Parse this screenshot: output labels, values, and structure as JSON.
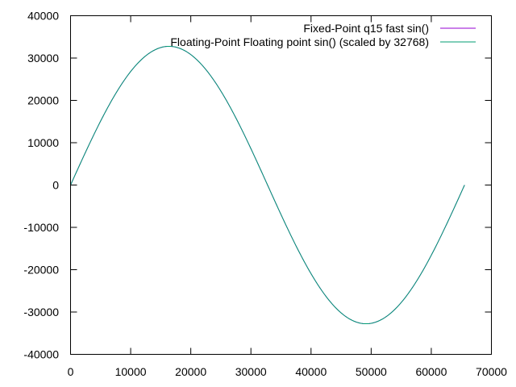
{
  "chart_data": {
    "type": "line",
    "title": "",
    "xlabel": "",
    "ylabel": "",
    "xlim": [
      0,
      70000
    ],
    "ylim": [
      -40000,
      40000
    ],
    "x_ticks": [
      0,
      10000,
      20000,
      30000,
      40000,
      50000,
      60000,
      70000
    ],
    "y_ticks": [
      -40000,
      -30000,
      -20000,
      -10000,
      0,
      10000,
      20000,
      30000,
      40000
    ],
    "grid": false,
    "legend_position": "top-right",
    "series": [
      {
        "name": "Fixed-Point q15 fast sin()",
        "color": "#9400d3",
        "x": [
          0,
          4096,
          8192,
          12288,
          16384,
          20480,
          24576,
          28672,
          32768,
          36864,
          40960,
          45056,
          49152,
          53248,
          57344,
          61440,
          65536
        ],
        "y": [
          0,
          12540,
          23170,
          30274,
          32767,
          30274,
          23170,
          12540,
          0,
          -12540,
          -23170,
          -30274,
          -32767,
          -30274,
          -23170,
          -12540,
          0
        ]
      },
      {
        "name": "Floating-Point Floating point sin() (scaled by 32768)",
        "color": "#009e73",
        "x": [
          0,
          4096,
          8192,
          12288,
          16384,
          20480,
          24576,
          28672,
          32768,
          36864,
          40960,
          45056,
          49152,
          53248,
          57344,
          61440,
          65536
        ],
        "y": [
          0,
          12540,
          23170,
          30274,
          32768,
          30274,
          23170,
          12540,
          0,
          -12540,
          -23170,
          -30274,
          -32768,
          -30274,
          -23170,
          -12540,
          0
        ]
      }
    ]
  }
}
